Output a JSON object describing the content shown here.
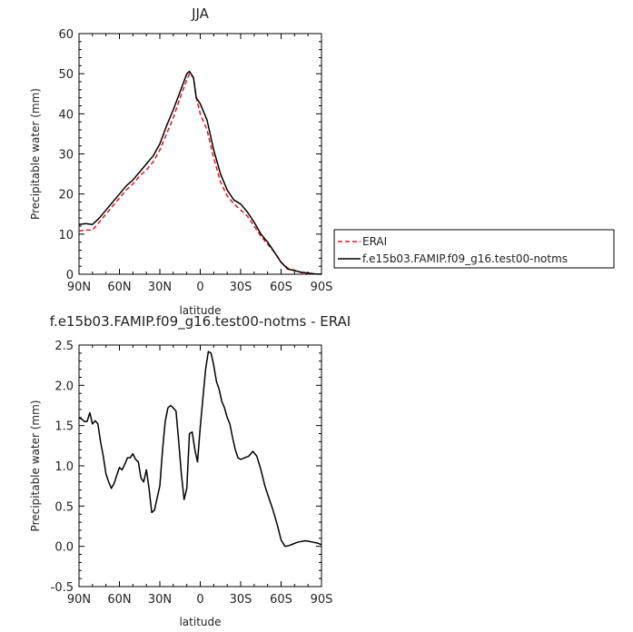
{
  "chart_data": [
    {
      "type": "line",
      "title": "JJA",
      "xlabel": "latitude",
      "ylabel": "Precipitable water (mm)",
      "xlim": [
        90,
        -90
      ],
      "ylim": [
        0,
        60
      ],
      "x_ticks": [
        90,
        60,
        30,
        0,
        -30,
        -60,
        -90
      ],
      "x_tick_labels": [
        "90N",
        "60N",
        "30N",
        "0",
        "30S",
        "60S",
        "90S"
      ],
      "y_ticks": [
        0,
        10,
        20,
        30,
        40,
        50,
        60
      ],
      "y_tick_labels": [
        "0",
        "10",
        "20",
        "30",
        "40",
        "50",
        "60"
      ],
      "legend_position": "right",
      "series": [
        {
          "name": "ERAI",
          "color": "#e0161d",
          "dash": "dashed",
          "x": [
            90,
            85,
            80,
            75,
            70,
            65,
            60,
            55,
            50,
            45,
            40,
            35,
            30,
            25,
            20,
            15,
            10,
            8,
            5,
            3,
            0,
            -5,
            -10,
            -15,
            -20,
            -25,
            -30,
            -35,
            -40,
            -45,
            -50,
            -55,
            -60,
            -65,
            -70,
            -75,
            -80,
            -85,
            -90
          ],
          "y": [
            10.8,
            11.0,
            11.0,
            13.0,
            15.0,
            17.0,
            19.0,
            21.0,
            22.5,
            24.5,
            26.0,
            28.0,
            31.0,
            35.0,
            39.0,
            44.0,
            48.5,
            50.0,
            49.0,
            44.0,
            40.0,
            36.0,
            29.0,
            23.0,
            19.5,
            17.5,
            16.0,
            14.5,
            12.0,
            9.5,
            7.5,
            5.5,
            3.0,
            1.5,
            1.0,
            0.4,
            0.2,
            0.1,
            0.0
          ]
        },
        {
          "name": "f.e15b03.FAMIP.f09_g16.test00-notms",
          "color": "#000000",
          "dash": "solid",
          "x": [
            90,
            85,
            80,
            75,
            70,
            65,
            60,
            55,
            50,
            45,
            40,
            35,
            30,
            25,
            20,
            15,
            10,
            8,
            5,
            3,
            0,
            -5,
            -10,
            -15,
            -20,
            -25,
            -30,
            -35,
            -40,
            -45,
            -50,
            -55,
            -60,
            -65,
            -70,
            -75,
            -80,
            -85,
            -90
          ],
          "y": [
            12.4,
            12.6,
            12.4,
            14.0,
            16.0,
            18.0,
            20.0,
            22.0,
            23.5,
            25.5,
            27.5,
            29.5,
            32.5,
            37.0,
            41.0,
            45.5,
            50.0,
            50.6,
            49.0,
            44.0,
            42.5,
            38.5,
            31.0,
            25.0,
            21.0,
            18.5,
            17.5,
            15.5,
            13.0,
            10.0,
            8.0,
            5.5,
            3.0,
            1.3,
            0.9,
            0.5,
            0.3,
            0.1,
            0.0
          ]
        }
      ]
    },
    {
      "type": "line",
      "title": "f.e15b03.FAMIP.f09_g16.test00-notms - ERAI",
      "xlabel": "latitude",
      "ylabel": "Precipitable water (mm)",
      "xlim": [
        90,
        -90
      ],
      "ylim": [
        -0.5,
        2.5
      ],
      "x_ticks": [
        90,
        60,
        30,
        0,
        -30,
        -60,
        -90
      ],
      "x_tick_labels": [
        "90N",
        "60N",
        "30N",
        "0",
        "30S",
        "60S",
        "90S"
      ],
      "y_ticks": [
        -0.5,
        0,
        0.5,
        1,
        1.5,
        2,
        2.5
      ],
      "y_tick_labels": [
        "-0.5",
        "0.0",
        "0.5",
        "1.0",
        "1.5",
        "2.0",
        "2.5"
      ],
      "series": [
        {
          "color": "#000000",
          "dash": "solid",
          "x": [
            90,
            88,
            86,
            84,
            82,
            80,
            78,
            76,
            74,
            72,
            70,
            68,
            66,
            64,
            62,
            60,
            58,
            56,
            54,
            52,
            50,
            48,
            46,
            44,
            42,
            40,
            38,
            36,
            34,
            32,
            30,
            28,
            26,
            24,
            22,
            20,
            18,
            16,
            14,
            12,
            10,
            8,
            6,
            4,
            2,
            0,
            -2,
            -4,
            -6,
            -8,
            -10,
            -12,
            -14,
            -16,
            -18,
            -20,
            -22,
            -24,
            -26,
            -28,
            -30,
            -33,
            -36,
            -39,
            -42,
            -45,
            -48,
            -51,
            -54,
            -57,
            -60,
            -63,
            -66,
            -69,
            -72,
            -75,
            -78,
            -81,
            -84,
            -87,
            -90
          ],
          "y": [
            1.6,
            1.58,
            1.55,
            1.55,
            1.66,
            1.52,
            1.56,
            1.52,
            1.3,
            1.12,
            0.9,
            0.8,
            0.72,
            0.78,
            0.88,
            0.98,
            0.95,
            1.02,
            1.1,
            1.1,
            1.15,
            1.08,
            1.05,
            0.85,
            0.8,
            0.95,
            0.72,
            0.42,
            0.45,
            0.6,
            0.75,
            1.2,
            1.55,
            1.72,
            1.75,
            1.72,
            1.68,
            1.3,
            0.9,
            0.58,
            0.72,
            1.4,
            1.42,
            1.2,
            1.05,
            1.48,
            1.85,
            2.2,
            2.42,
            2.4,
            2.25,
            2.05,
            1.95,
            1.8,
            1.72,
            1.6,
            1.52,
            1.35,
            1.2,
            1.1,
            1.08,
            1.1,
            1.12,
            1.18,
            1.12,
            0.95,
            0.75,
            0.6,
            0.45,
            0.28,
            0.08,
            0.0,
            0.01,
            0.03,
            0.05,
            0.06,
            0.07,
            0.06,
            0.05,
            0.04,
            0.02
          ]
        }
      ]
    }
  ]
}
